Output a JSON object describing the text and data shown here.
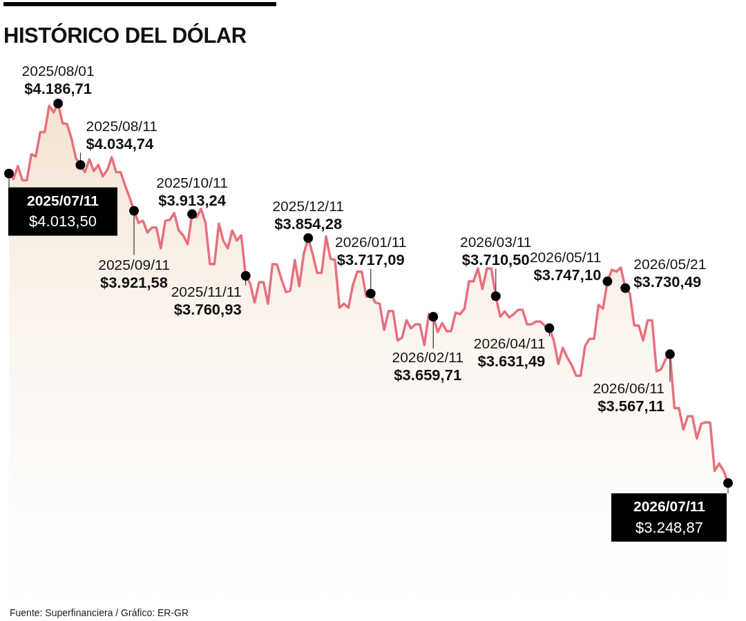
{
  "chart_data": {
    "type": "area",
    "title": "HISTÓRICO DEL DÓLAR",
    "color": "#e8707e",
    "categories": [
      null,
      null,
      null,
      null,
      null,
      null,
      null,
      null,
      null,
      null,
      null,
      null,
      null,
      null,
      null,
      null,
      null,
      null,
      null,
      null,
      null,
      null,
      null,
      null,
      null,
      null,
      null,
      null,
      null,
      null,
      null,
      null,
      null,
      null,
      null,
      null,
      null,
      null,
      null,
      null,
      null,
      null,
      null,
      null,
      null,
      null,
      null,
      null,
      null,
      null,
      null,
      null,
      null,
      null,
      null,
      null,
      null,
      null,
      null,
      null,
      null,
      null,
      null,
      null,
      null,
      null,
      null,
      null,
      null,
      null,
      null,
      null,
      null,
      null,
      null,
      null,
      null,
      null,
      null,
      null,
      null,
      null,
      null,
      null,
      null,
      null,
      null,
      null,
      null,
      null,
      null,
      null,
      null,
      null,
      null,
      null,
      null,
      null,
      null,
      null,
      null,
      null,
      null,
      null,
      null,
      null,
      null,
      null,
      null,
      null,
      null,
      null,
      null,
      null,
      null,
      null,
      null,
      null,
      null,
      null,
      null,
      null,
      null,
      null,
      null,
      null,
      null,
      null,
      null,
      null,
      null,
      null,
      null,
      null,
      null,
      null,
      null,
      null,
      null,
      null,
      null,
      null,
      null,
      null,
      null,
      null,
      null,
      null,
      null,
      null,
      null,
      null,
      null,
      null,
      null,
      null,
      null,
      null,
      null,
      null,
      null,
      null
    ],
    "values": [
      4013.5,
      4000,
      4032,
      3997,
      3997,
      4061,
      4056,
      4116,
      4116,
      4181,
      4165,
      4186.71,
      4138,
      4136,
      4100,
      4051,
      4034.74,
      4017,
      4049,
      4020,
      4035,
      4007,
      4022,
      4054,
      4017,
      4017,
      3984,
      3955,
      3921.58,
      3892,
      3897,
      3868,
      3880,
      3880,
      3829,
      3897,
      3899,
      3916,
      3873,
      3861,
      3839,
      3913.24,
      3905,
      3926,
      3892,
      3790,
      3790,
      3890,
      3847,
      3829,
      3873,
      3848,
      3861,
      3760.93,
      3742,
      3695,
      3745,
      3745,
      3692,
      3790,
      3789,
      3753,
      3721,
      3724,
      3800,
      3735,
      3815,
      3854.28,
      3815,
      3768,
      3768,
      3858,
      3803,
      3800,
      3682,
      3692,
      3682,
      3738,
      3771,
      3771,
      3709,
      3717.09,
      3695,
      3692,
      3627,
      3674,
      3674,
      3601,
      3608,
      3651,
      3631,
      3641,
      3641,
      3590,
      3666,
      3659.71,
      3622,
      3644,
      3624,
      3624,
      3670,
      3666,
      3680,
      3747,
      3747,
      3779,
      3728,
      3779,
      3779,
      3710.5,
      3660,
      3673,
      3658,
      3666,
      3677,
      3677,
      3641,
      3641,
      3648,
      3648,
      3637,
      3631.49,
      3601,
      3543,
      3583,
      3559,
      3540,
      3514,
      3514,
      3588,
      3605,
      3605,
      3689,
      3680,
      3747.1,
      3776,
      3771,
      3781,
      3730.49,
      3718,
      3638,
      3638,
      3601,
      3651,
      3651,
      3525,
      3530,
      3554,
      3567.11,
      3434,
      3434,
      3381,
      3414,
      3414,
      3359,
      3395,
      3399,
      3398,
      3279,
      3297,
      3279,
      3248.87
    ],
    "value_labels": [
      "$4.013,50",
      null,
      null,
      null,
      null,
      null,
      null,
      null,
      null,
      null,
      null,
      "$4.186,71",
      null,
      null,
      null,
      null,
      "$4.034,74",
      null,
      null,
      null,
      null,
      null,
      null,
      null,
      null,
      null,
      null,
      null,
      "$3.921,58",
      null,
      null,
      null,
      null,
      null,
      null,
      null,
      null,
      null,
      null,
      null,
      null,
      "$3.913,24",
      null,
      null,
      null,
      null,
      null,
      null,
      null,
      null,
      null,
      null,
      null,
      "$3.760,93",
      null,
      null,
      null,
      null,
      null,
      null,
      null,
      null,
      null,
      null,
      null,
      null,
      null,
      "$3.854,28",
      null,
      null,
      null,
      null,
      null,
      null,
      null,
      null,
      null,
      null,
      null,
      null,
      null,
      "$3.717,09",
      null,
      null,
      null,
      null,
      null,
      null,
      null,
      null,
      null,
      null,
      null,
      null,
      null,
      "$3.659,71",
      null,
      null,
      null,
      null,
      null,
      null,
      null,
      null,
      null,
      null,
      null,
      null,
      null,
      "$3.710,50",
      null,
      null,
      null,
      null,
      null,
      null,
      null,
      null,
      null,
      null,
      null,
      "$3.631,49",
      null,
      null,
      null,
      null,
      null,
      null,
      null,
      null,
      null,
      null,
      null,
      null,
      "$3.747,10",
      null,
      null,
      null,
      "$3.730,49",
      null,
      null,
      null,
      null,
      null,
      null,
      null,
      null,
      null,
      "$3.567,11",
      null,
      null,
      null,
      null,
      null,
      null,
      null,
      null,
      null,
      null,
      null,
      null,
      "$3.248,87"
    ],
    "annotations": [
      "2025/07/11",
      "2025/08/01",
      "2025/08/11",
      "2025/09/11",
      "2025/10/11",
      "2025/11/11",
      "2025/12/11",
      "2026/01/11",
      "2026/02/11",
      "2026/03/11",
      "2026/04/11",
      "2026/05/11",
      "2026/05/21",
      "2026/06/11",
      "2026/07/11",
      "Fuente: Superfinanciera / Gráfico: ER-GR"
    ]
  }
}
